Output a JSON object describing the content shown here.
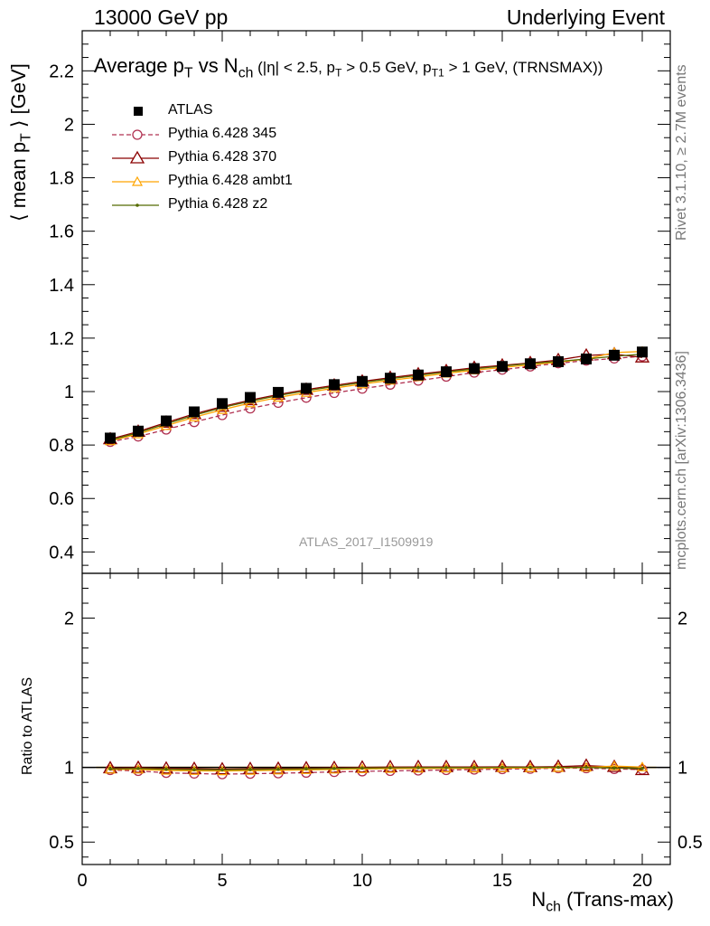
{
  "header": {
    "left": "13000 GeV pp",
    "right": "Underlying Event"
  },
  "side_text": {
    "events": "Rivet 3.1.10, ≥ 2.7M events",
    "source": "mcplots.cern.ch [arXiv:1306.3436]"
  },
  "plot_title": {
    "main_a": "Average p",
    "main_sub1": "T",
    "main_b": " vs N",
    "main_sub2": "ch",
    "cuts": " (|η| < 2.5, p",
    "cuts_sub1": "T",
    "cuts_b": " > 0.5 GeV, p",
    "cuts_sub2": "T1",
    "cuts_c": " > 1 GeV, (TRNSMAX))"
  },
  "analysis_id": "ATLAS_2017_I1509919",
  "colors": {
    "atlas": "#000000",
    "p345": "#b03050",
    "p370": "#8b0000",
    "ambt1": "#ffa500",
    "z2": "#556b00"
  },
  "chart_data": [
    {
      "type": "line",
      "xlabel": "N_ch (Trans-max)",
      "xlabel_main": "N",
      "xlabel_sub": "ch",
      "xlabel_rest": " (Trans-max)",
      "ylabel": "⟨ mean p_T ⟩ [GeV]",
      "xlim": [
        0,
        21
      ],
      "ylim": [
        0.32,
        2.35
      ],
      "yticks": [
        "0.4",
        "0.6",
        "0.8",
        "1",
        "1.2",
        "1.4",
        "1.6",
        "1.8",
        "2",
        "2.2"
      ],
      "xticks": [
        "0",
        "5",
        "10",
        "15",
        "20"
      ],
      "x": [
        1,
        2,
        3,
        4,
        5,
        6,
        7,
        8,
        9,
        10,
        11,
        12,
        13,
        14,
        15,
        16,
        17,
        18,
        19,
        20
      ],
      "series": [
        {
          "name": "ATLAS",
          "key": "atlas",
          "marker": "square",
          "values": [
            0.826,
            0.852,
            0.89,
            0.924,
            0.955,
            0.978,
            0.997,
            1.012,
            1.026,
            1.038,
            1.05,
            1.062,
            1.074,
            1.086,
            1.094,
            1.104,
            1.112,
            1.122,
            1.136,
            1.148
          ]
        },
        {
          "name": "Pythia 6.428 345",
          "key": "p345",
          "marker": "circle",
          "dash": true,
          "values": [
            0.812,
            0.832,
            0.858,
            0.886,
            0.912,
            0.937,
            0.958,
            0.977,
            0.995,
            1.011,
            1.026,
            1.041,
            1.056,
            1.071,
            1.082,
            1.094,
            1.106,
            1.116,
            1.124,
            1.132
          ]
        },
        {
          "name": "Pythia 6.428 370",
          "key": "p370",
          "marker": "triangle",
          "values": [
            0.822,
            0.85,
            0.884,
            0.916,
            0.944,
            0.968,
            0.989,
            1.007,
            1.023,
            1.038,
            1.052,
            1.065,
            1.077,
            1.089,
            1.098,
            1.107,
            1.118,
            1.135,
            1.14,
            1.128
          ]
        },
        {
          "name": "Pythia 6.428 ambt1",
          "key": "ambt1",
          "marker": "triangle-small",
          "values": [
            0.815,
            0.841,
            0.872,
            0.904,
            0.932,
            0.957,
            0.978,
            0.996,
            1.013,
            1.028,
            1.042,
            1.055,
            1.068,
            1.08,
            1.09,
            1.1,
            1.11,
            1.122,
            1.146,
            1.15
          ]
        },
        {
          "name": "Pythia 6.428 z2",
          "key": "z2",
          "marker": "dot",
          "values": [
            0.818,
            0.846,
            0.879,
            0.911,
            0.94,
            0.964,
            0.985,
            1.003,
            1.019,
            1.034,
            1.048,
            1.061,
            1.073,
            1.085,
            1.095,
            1.105,
            1.113,
            1.122,
            1.132,
            1.14
          ]
        }
      ]
    },
    {
      "type": "line",
      "ylabel": "Ratio to ATLAS",
      "xlim": [
        0,
        21
      ],
      "ylim": [
        0.35,
        2.3
      ],
      "yticks": [
        "0.5",
        "1",
        "2"
      ],
      "x": [
        1,
        2,
        3,
        4,
        5,
        6,
        7,
        8,
        9,
        10,
        11,
        12,
        13,
        14,
        15,
        16,
        17,
        18,
        19,
        20
      ],
      "series": [
        {
          "name": "Pythia 6.428 345",
          "key": "p345",
          "values": [
            0.983,
            0.977,
            0.964,
            0.959,
            0.955,
            0.958,
            0.961,
            0.965,
            0.97,
            0.974,
            0.977,
            0.98,
            0.983,
            0.986,
            0.989,
            0.991,
            0.995,
            0.995,
            0.99,
            0.986
          ]
        },
        {
          "name": "Pythia 6.428 370",
          "key": "p370",
          "values": [
            0.995,
            0.998,
            0.993,
            0.991,
            0.988,
            0.99,
            0.992,
            0.995,
            0.997,
            1.0,
            1.002,
            1.003,
            1.003,
            1.003,
            1.004,
            1.003,
            1.005,
            1.012,
            1.004,
            0.983
          ]
        },
        {
          "name": "Pythia 6.428 ambt1",
          "key": "ambt1",
          "values": [
            0.987,
            0.987,
            0.98,
            0.978,
            0.976,
            0.979,
            0.981,
            0.984,
            0.987,
            0.99,
            0.992,
            0.993,
            0.994,
            0.994,
            0.996,
            0.996,
            0.998,
            1.0,
            1.009,
            1.002
          ]
        },
        {
          "name": "Pythia 6.428 z2",
          "key": "z2",
          "values": [
            0.99,
            0.993,
            0.988,
            0.985,
            0.984,
            0.986,
            0.988,
            0.991,
            0.993,
            0.996,
            0.998,
            0.999,
            0.999,
            0.999,
            1.001,
            1.001,
            1.001,
            1.0,
            0.996,
            0.993
          ]
        }
      ]
    }
  ]
}
